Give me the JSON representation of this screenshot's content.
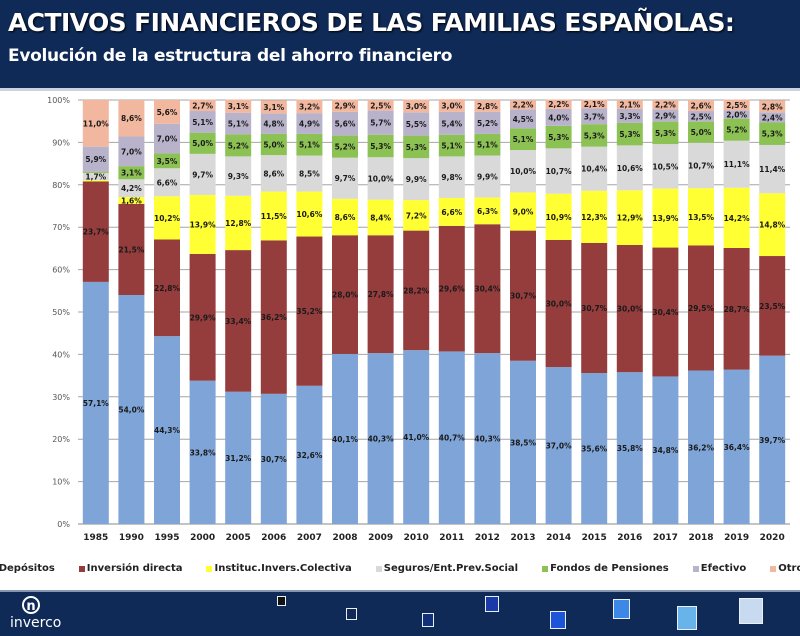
{
  "header": {
    "title": "ACTIVOS FINANCIEROS DE LAS FAMILIAS ESPAÑOLAS:",
    "subtitle": "Evolución de la estructura del ahorro financiero"
  },
  "footer": {
    "logo_text": "inverco",
    "logo_glyph": "n"
  },
  "chart_data": {
    "type": "bar",
    "stacked": true,
    "title": "ACTIVOS FINANCIEROS DE LAS FAMILIAS ESPAÑOLAS: Evolución de la estructura del ahorro financiero",
    "xlabel": "",
    "ylabel": "",
    "ylim": [
      0,
      100
    ],
    "yticks": [
      "0%",
      "10%",
      "20%",
      "30%",
      "40%",
      "50%",
      "60%",
      "70%",
      "80%",
      "90%",
      "100%"
    ],
    "grid": true,
    "legend_position": "bottom",
    "categories": [
      "1985",
      "1990",
      "1995",
      "2000",
      "2005",
      "2006",
      "2007",
      "2008",
      "2009",
      "2010",
      "2011",
      "2012",
      "2013",
      "2014",
      "2015",
      "2016",
      "2017",
      "2018",
      "2019",
      "2020"
    ],
    "series": [
      {
        "name": "Depósitos",
        "color": "#7fa5d8",
        "values": [
          57.1,
          54.0,
          44.3,
          33.8,
          31.2,
          30.7,
          32.6,
          40.1,
          40.3,
          41.0,
          40.7,
          40.3,
          38.5,
          37.0,
          35.6,
          35.8,
          34.8,
          36.2,
          36.4,
          39.7
        ]
      },
      {
        "name": "Inversión directa",
        "color": "#953c3d",
        "values": [
          23.7,
          21.5,
          22.8,
          29.9,
          33.4,
          36.2,
          35.2,
          28.0,
          27.8,
          28.2,
          29.6,
          30.4,
          30.7,
          30.0,
          30.7,
          30.0,
          30.4,
          29.5,
          28.7,
          23.5
        ]
      },
      {
        "name": "Instituc.Invers.Colectiva",
        "color": "#ffff33",
        "values": [
          0.3,
          1.6,
          10.2,
          13.9,
          12.8,
          11.5,
          10.6,
          8.6,
          8.4,
          7.2,
          6.6,
          6.3,
          9.0,
          10.9,
          12.3,
          12.9,
          13.9,
          13.5,
          14.2,
          14.8
        ]
      },
      {
        "name": "Seguros/Ent.Prev.Social",
        "color": "#d9d9d9",
        "values": [
          1.7,
          4.2,
          6.6,
          9.7,
          9.3,
          8.6,
          8.5,
          9.7,
          10.0,
          9.9,
          9.8,
          9.9,
          10.0,
          10.7,
          10.4,
          10.6,
          10.5,
          10.7,
          11.1,
          11.4
        ]
      },
      {
        "name": "Fondos de Pensiones",
        "color": "#8cc153",
        "values": [
          0.3,
          3.1,
          3.5,
          5.0,
          5.2,
          5.0,
          5.1,
          5.2,
          5.3,
          5.3,
          5.1,
          5.1,
          5.1,
          5.3,
          5.3,
          5.3,
          5.3,
          5.0,
          5.2,
          5.3
        ]
      },
      {
        "name": "Efectivo",
        "color": "#b8b3cb",
        "values": [
          5.9,
          7.0,
          7.0,
          5.1,
          5.1,
          4.8,
          4.9,
          5.6,
          5.7,
          5.5,
          5.4,
          5.2,
          4.5,
          4.0,
          3.7,
          3.3,
          2.9,
          2.5,
          2.0,
          2.4
        ]
      },
      {
        "name": "Otros",
        "color": "#f2b79f",
        "values": [
          11.0,
          8.6,
          5.6,
          2.7,
          3.1,
          3.1,
          3.2,
          2.9,
          2.5,
          3.0,
          3.0,
          2.8,
          2.2,
          2.2,
          2.1,
          2.1,
          2.2,
          2.6,
          2.5,
          2.8
        ]
      }
    ]
  }
}
